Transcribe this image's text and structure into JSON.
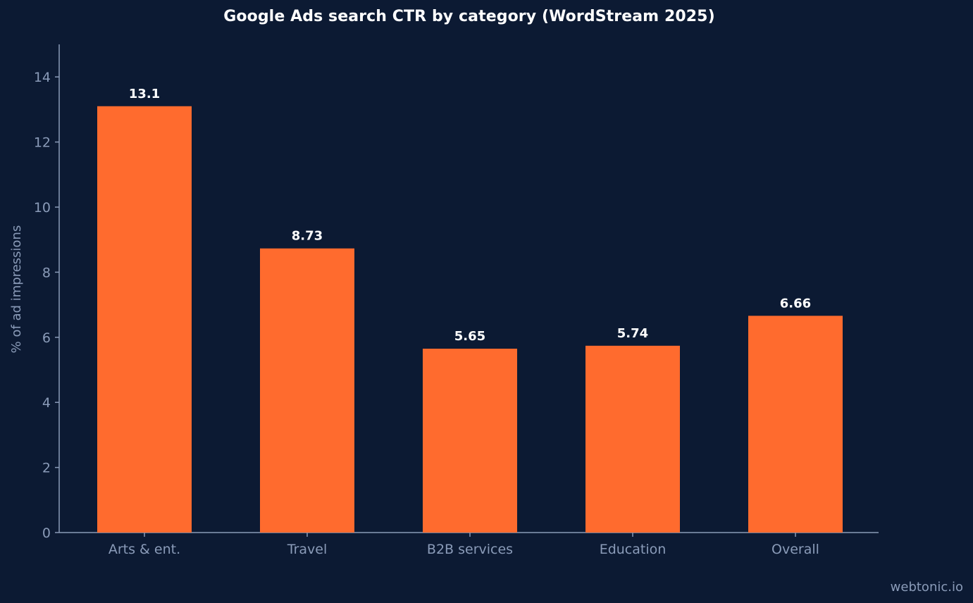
{
  "chart_data": {
    "type": "bar",
    "title": "Google Ads search CTR by category (WordStream 2025)",
    "xlabel": "",
    "ylabel": "% of ad impressions",
    "categories": [
      "Arts & ent.",
      "Travel",
      "B2B services",
      "Education",
      "Overall"
    ],
    "values": [
      13.1,
      8.73,
      5.65,
      5.74,
      6.66
    ],
    "value_labels": [
      "13.1",
      "8.73",
      "5.65",
      "5.74",
      "6.66"
    ],
    "ylim": [
      0,
      15
    ],
    "yticks": [
      0,
      2,
      4,
      6,
      8,
      10,
      12,
      14
    ],
    "grid": false,
    "legend": "none",
    "colors": {
      "background": "#0c1a33",
      "bar": "#ff6b2e",
      "axis": "#8a9bb8",
      "text": "#8a9bb8",
      "value_text": "#ffffff"
    }
  },
  "watermark": "webtonic.io"
}
